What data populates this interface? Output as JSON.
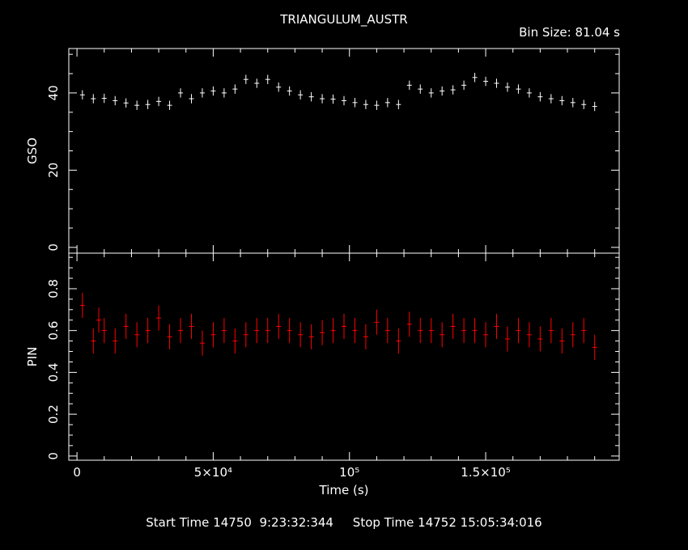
{
  "chart_data": [
    {
      "type": "scatter",
      "panel": "top",
      "title": "TRIANGULUM_AUSTR",
      "ylabel": "GSO",
      "color": "#ffffff",
      "ylim": [
        -1.5,
        51.5
      ],
      "xlim": [
        -3000,
        199000
      ],
      "yticks": [
        0,
        20,
        40
      ],
      "x": [
        2000,
        6000,
        10000,
        14000,
        18000,
        22000,
        26000,
        30000,
        34000,
        38000,
        42000,
        46000,
        50000,
        54000,
        58000,
        62000,
        66000,
        70000,
        74000,
        78000,
        82000,
        86000,
        90000,
        94000,
        98000,
        102000,
        106000,
        110000,
        114000,
        118000,
        122000,
        126000,
        130000,
        134000,
        138000,
        142000,
        146000,
        150000,
        154000,
        158000,
        162000,
        166000,
        170000,
        174000,
        178000,
        182000,
        186000,
        190000
      ],
      "values": [
        39.5,
        38.5,
        38.6,
        38.0,
        37.4,
        36.8,
        37.0,
        37.8,
        36.8,
        40.0,
        38.5,
        40.0,
        40.5,
        40.0,
        41.0,
        43.5,
        42.5,
        43.5,
        41.5,
        40.5,
        39.5,
        39.0,
        38.5,
        38.4,
        38.0,
        37.5,
        37.0,
        36.8,
        37.5,
        37.0,
        42.0,
        41.0,
        40.0,
        40.5,
        40.8,
        42.0,
        44.0,
        43.0,
        42.5,
        41.5,
        41.0,
        40.0,
        39.0,
        38.5,
        38.0,
        37.5,
        37.0,
        36.5
      ]
    },
    {
      "type": "scatter",
      "panel": "bottom",
      "ylabel": "PIN",
      "xlabel": "Time (s)",
      "color": "#ff0000",
      "ylim": [
        -0.02,
        0.97
      ],
      "xlim": [
        -3000,
        199000
      ],
      "yticks": [
        0,
        0.2,
        0.4,
        0.6,
        0.8
      ],
      "xticks": [
        0,
        50000,
        100000,
        150000
      ],
      "xtick_labels": [
        "0",
        "5×10⁴",
        "10⁵",
        "1.5×10⁵"
      ],
      "x": [
        2000,
        6000,
        8000,
        10000,
        14000,
        18000,
        22000,
        26000,
        30000,
        34000,
        38000,
        42000,
        46000,
        50000,
        54000,
        58000,
        62000,
        66000,
        70000,
        74000,
        78000,
        82000,
        86000,
        90000,
        94000,
        98000,
        102000,
        106000,
        110000,
        114000,
        118000,
        122000,
        126000,
        130000,
        134000,
        138000,
        142000,
        146000,
        150000,
        154000,
        158000,
        162000,
        166000,
        170000,
        174000,
        178000,
        182000,
        186000,
        190000
      ],
      "values": [
        0.72,
        0.55,
        0.65,
        0.6,
        0.55,
        0.62,
        0.58,
        0.6,
        0.66,
        0.57,
        0.6,
        0.62,
        0.54,
        0.58,
        0.6,
        0.55,
        0.58,
        0.6,
        0.6,
        0.62,
        0.6,
        0.58,
        0.57,
        0.59,
        0.6,
        0.62,
        0.6,
        0.57,
        0.64,
        0.6,
        0.55,
        0.63,
        0.6,
        0.6,
        0.58,
        0.62,
        0.6,
        0.6,
        0.58,
        0.62,
        0.56,
        0.6,
        0.58,
        0.56,
        0.6,
        0.55,
        0.58,
        0.6,
        0.52
      ]
    }
  ],
  "bin_size_label": "Bin Size:",
  "bin_size_value": "81.04 s",
  "footer": {
    "start_label": "Start Time",
    "start_value": "14750  9:23:32:344",
    "stop_label": "Stop Time",
    "stop_value": "14752 15:05:34:016"
  }
}
